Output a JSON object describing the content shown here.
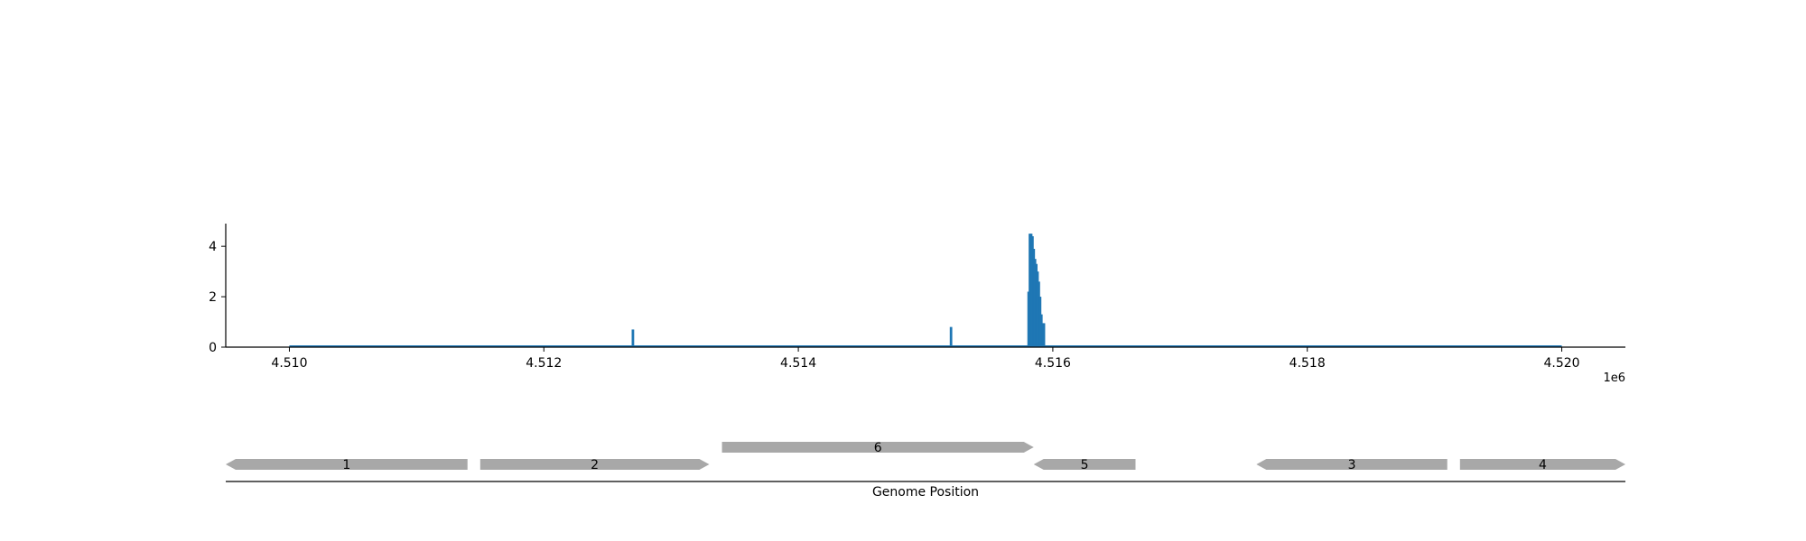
{
  "chart_data": [
    {
      "type": "bar",
      "title": "",
      "xlabel": "",
      "ylabel": "",
      "xlim": [
        4509500,
        4520500
      ],
      "ylim": [
        0,
        4.9
      ],
      "x_offset_label": "1e6",
      "x_ticks": [
        4510000,
        4512000,
        4514000,
        4516000,
        4518000,
        4520000
      ],
      "x_tick_labels": [
        "4.510",
        "4.512",
        "4.514",
        "4.516",
        "4.518",
        "4.520"
      ],
      "y_ticks": [
        0,
        2,
        4
      ],
      "y_tick_labels": [
        "0",
        "2",
        "4"
      ],
      "baseline_range": [
        4510000,
        4520000
      ],
      "color": "#1f77b4",
      "grid": false,
      "legend": "none",
      "x": [
        4512700,
        4515200,
        4515810,
        4515820,
        4515830,
        4515840,
        4515850,
        4515860,
        4515870,
        4515880,
        4515890,
        4515900,
        4515910,
        4515920,
        4515930
      ],
      "values": [
        0.7,
        0.8,
        2.2,
        4.5,
        4.5,
        4.4,
        3.9,
        3.5,
        3.3,
        3.0,
        2.6,
        2.0,
        1.3,
        0.95,
        0.95
      ]
    },
    {
      "type": "gene-map",
      "xlabel": "Genome Position",
      "xlim": [
        4509500,
        4520500
      ],
      "color": "#a8a8a8",
      "genes": [
        {
          "label": "1",
          "start": 4509500,
          "end": 4511400,
          "strand": "-",
          "row": 0
        },
        {
          "label": "2",
          "start": 4511500,
          "end": 4513300,
          "strand": "+",
          "row": 0
        },
        {
          "label": "6",
          "start": 4513400,
          "end": 4515850,
          "strand": "+",
          "row": 1
        },
        {
          "label": "5",
          "start": 4515850,
          "end": 4516650,
          "strand": "-",
          "row": 0
        },
        {
          "label": "3",
          "start": 4517600,
          "end": 4519100,
          "strand": "-",
          "row": 0
        },
        {
          "label": "4",
          "start": 4519200,
          "end": 4520500,
          "strand": "+",
          "row": 0
        }
      ]
    }
  ]
}
